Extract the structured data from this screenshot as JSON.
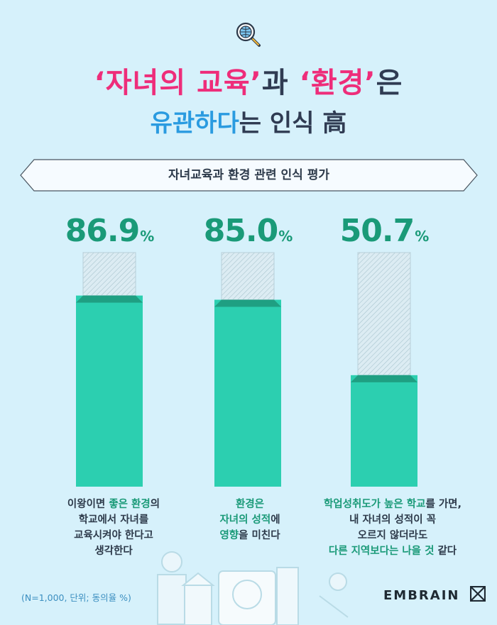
{
  "header": {
    "title_line1_q1": "‘자녀의 교육’",
    "title_line1_mid": "과 ",
    "title_line1_q2": "‘환경’",
    "title_line1_end": "은",
    "title_line2_hl": "유관하다",
    "title_line2_rest": "는 인식 高"
  },
  "banner": {
    "label": "자녀교육과 환경 관련 인식 평가"
  },
  "chart_data": {
    "type": "bar",
    "title": "자녀교육과 환경 관련 인식 평가",
    "unit": "%",
    "ylim": [
      0,
      100
    ],
    "categories": [
      "이왕이면 좋은 환경의 학교에서 자녀를 교육시켜야 한다고 생각한다",
      "환경은 자녀의 성적에 영향을 미친다",
      "학업성취도가 높은 학교를 가면, 내 자녀의 성적이 꼭 오르지 않더라도 다른 지역보다는 나을 것 같다"
    ],
    "values": [
      86.9,
      85.0,
      50.7
    ],
    "value_labels": [
      "86.9",
      "85.0",
      "50.7"
    ],
    "bar_color": "#2ccfb0"
  },
  "captions": [
    {
      "l1a": "이왕이면 ",
      "l1b": "좋은 환경",
      "l1c": "의",
      "l2": "학교에서 자녀를",
      "l3": "교육시켜야 한다고",
      "l4": "생각한다"
    },
    {
      "l1": "환경은",
      "l2a": "자녀의 성적",
      "l2b": "에",
      "l3a": "영향",
      "l3b": "을 미친다"
    },
    {
      "l1a": "학업성취도가 높은 학교",
      "l1b": "를 가면,",
      "l2": "내 자녀의 성적이 꼭",
      "l3": "오르지 않더라도",
      "l4a": "다른 지역보다는 나을 것",
      "l4b": " 같다"
    }
  ],
  "footnote": "(N=1,000, 단위; 동의율 %)",
  "brand": {
    "logo": "EMBRAIN",
    "icon": "embrain-logo-icon"
  },
  "icons": {
    "top": "search-globe-icon"
  },
  "colors": {
    "pink": "#ee2d7a",
    "blue": "#2a9be0",
    "green_text": "#1a9a78",
    "bar": "#2ccfb0",
    "background": "#d6f1fb"
  }
}
